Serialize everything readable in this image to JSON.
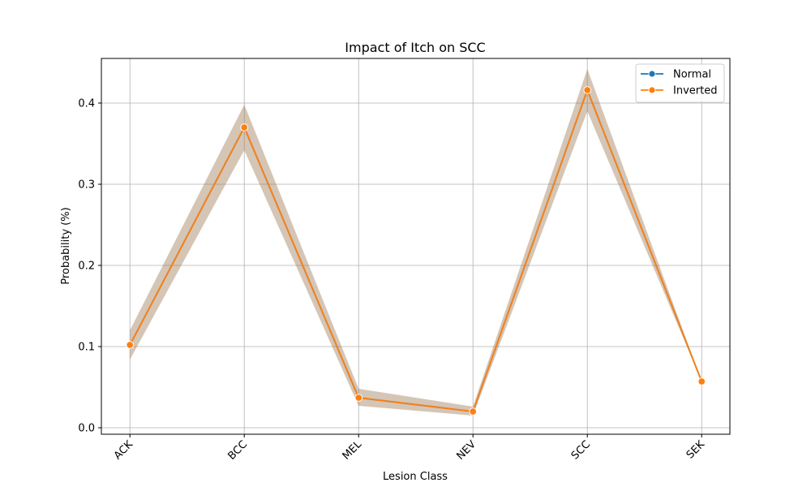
{
  "chart_data": {
    "type": "line",
    "title": "Impact of Itch on SCC",
    "xlabel": "Lesion Class",
    "ylabel": "Probability (%)",
    "categories": [
      "ACK",
      "BCC",
      "MEL",
      "NEV",
      "SCC",
      "SEK"
    ],
    "ylim": [
      -0.008,
      0.455
    ],
    "yticks": [
      0.0,
      0.1,
      0.2,
      0.3,
      0.4
    ],
    "ytick_labels": [
      "0.0",
      "0.1",
      "0.2",
      "0.3",
      "0.4"
    ],
    "grid": true,
    "legend_position": "top-right",
    "series": [
      {
        "name": "Normal",
        "color": "#1f77b4",
        "values": [
          0.102,
          0.37,
          0.037,
          0.02,
          0.416,
          0.057
        ],
        "band_lower": [
          0.084,
          0.342,
          0.027,
          0.015,
          0.39,
          0.057
        ],
        "band_upper": [
          0.12,
          0.398,
          0.048,
          0.026,
          0.442,
          0.057
        ]
      },
      {
        "name": "Inverted",
        "color": "#ff7f0e",
        "values": [
          0.102,
          0.37,
          0.037,
          0.02,
          0.416,
          0.057
        ],
        "band_lower": [
          0.084,
          0.342,
          0.027,
          0.015,
          0.39,
          0.057
        ],
        "band_upper": [
          0.12,
          0.398,
          0.048,
          0.026,
          0.442,
          0.057
        ]
      }
    ]
  }
}
